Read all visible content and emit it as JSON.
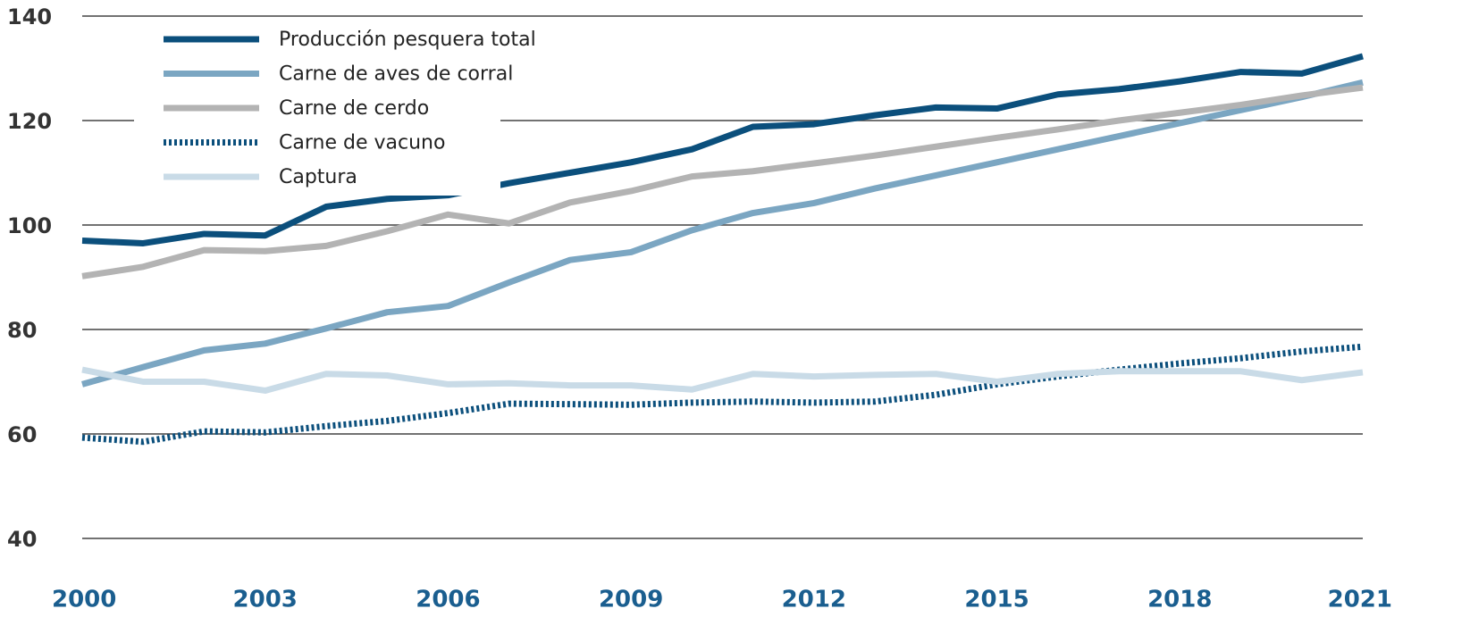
{
  "chart_data": {
    "type": "line",
    "x": [
      2000,
      2001,
      2002,
      2003,
      2004,
      2005,
      2006,
      2007,
      2008,
      2009,
      2010,
      2011,
      2012,
      2013,
      2014,
      2015,
      2016,
      2017,
      2018,
      2019,
      2020,
      2021
    ],
    "series": [
      {
        "name": "Producción pesquera total",
        "color": "#0b4f7c",
        "style": "solid",
        "values": [
          97,
          96.5,
          98.3,
          98,
          103.5,
          105,
          105.7,
          108,
          110,
          112,
          114.5,
          118.8,
          119.3,
          121,
          122.5,
          122.3,
          125,
          126,
          127.5,
          129.3,
          129,
          132.3
        ]
      },
      {
        "name": "Carne de aves de corral",
        "color": "#7ba6c2",
        "style": "solid",
        "values": [
          69.5,
          72.8,
          76,
          77.3,
          80.2,
          83.3,
          84.5,
          89,
          93.3,
          94.8,
          99,
          102.3,
          104.2,
          107,
          109.5,
          112,
          114.5,
          117,
          119.5,
          122,
          124.5,
          127.3
        ]
      },
      {
        "name": "Carne de cerdo",
        "color": "#b3b3b3",
        "style": "solid",
        "values": [
          90.2,
          92,
          95.2,
          95,
          96,
          98.8,
          102,
          100.3,
          104.3,
          106.5,
          109.3,
          110.3,
          111.8,
          113.3,
          115,
          116.7,
          118.3,
          120,
          121.5,
          123,
          124.8,
          126.3
        ]
      },
      {
        "name": "Carne de vacuno",
        "color": "#0b4f7c",
        "style": "dotted",
        "values": [
          59.3,
          58.5,
          60.5,
          60.3,
          61.5,
          62.5,
          64,
          65.8,
          65.7,
          65.6,
          66,
          66.2,
          66,
          66.2,
          67.5,
          69.5,
          71,
          72.3,
          73.5,
          74.5,
          75.8,
          76.7
        ]
      },
      {
        "name": "Captura",
        "color": "#c9dbe7",
        "style": "solid",
        "values": [
          72.3,
          70,
          70,
          68.3,
          71.5,
          71.2,
          69.5,
          69.7,
          69.3,
          69.3,
          68.5,
          71.5,
          71,
          71.3,
          71.5,
          70,
          71.5,
          72,
          72,
          72,
          70.3,
          71.8
        ]
      }
    ],
    "xlim": [
      2000,
      2021
    ],
    "xticks": [
      2000,
      2003,
      2006,
      2009,
      2012,
      2015,
      2018,
      2021
    ],
    "ylim": [
      40,
      140
    ],
    "yticks": [
      40,
      60,
      80,
      100,
      120,
      140
    ],
    "grid": true,
    "legend": "upper left"
  }
}
